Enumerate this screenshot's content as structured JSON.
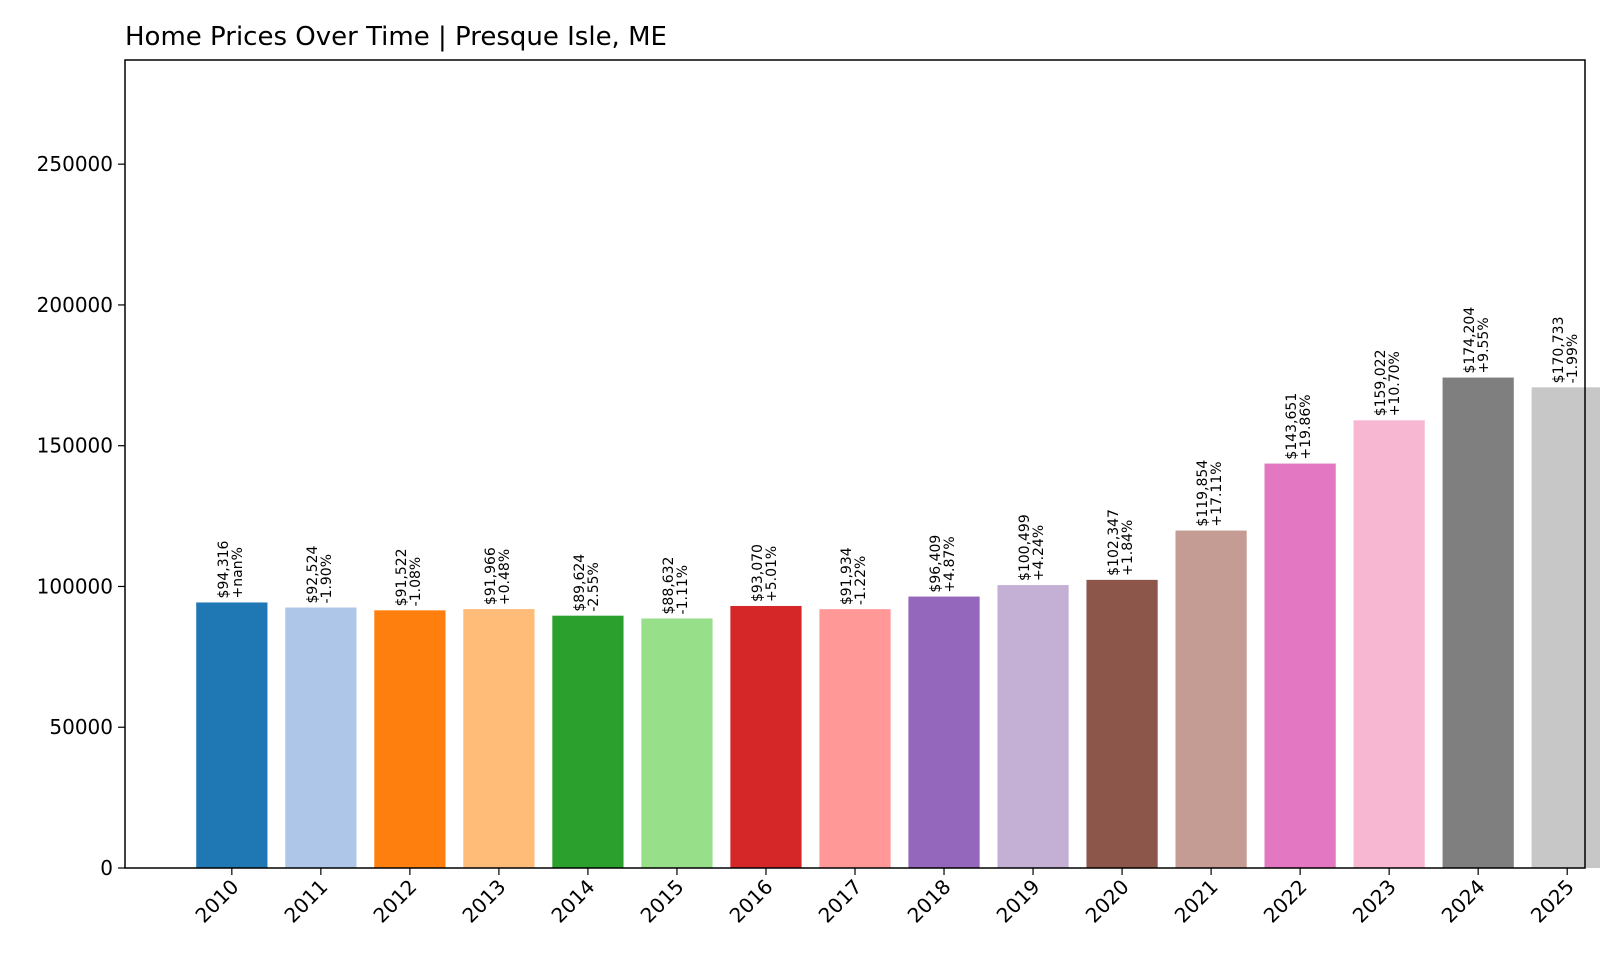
{
  "chart_data": {
    "type": "bar",
    "title": "Home Prices Over Time | Presque Isle, ME",
    "xlabel": "",
    "ylabel": "",
    "ylim": [
      0,
      287000
    ],
    "yticks": [
      0,
      50000,
      100000,
      150000,
      200000,
      250000
    ],
    "ytick_labels": [
      "0",
      "50000",
      "100000",
      "150000",
      "200000",
      "250000"
    ],
    "grid": false,
    "legend": "none",
    "categories": [
      "2010",
      "2011",
      "2012",
      "2013",
      "2014",
      "2015",
      "2016",
      "2017",
      "2018",
      "2019",
      "2020",
      "2021",
      "2022",
      "2023",
      "2024",
      "2025"
    ],
    "values": [
      94316,
      92524,
      91522,
      91966,
      89624,
      88632,
      93070,
      91934,
      96409,
      100499,
      102347,
      119854,
      143651,
      159022,
      174204,
      170733
    ],
    "price_labels": [
      "$94,316",
      "$92,524",
      "$91,522",
      "$91,966",
      "$89,624",
      "$88,632",
      "$93,070",
      "$91,934",
      "$96,409",
      "$100,499",
      "$102,347",
      "$119,854",
      "$143,651",
      "$159,022",
      "$174,204",
      "$170,733"
    ],
    "change_labels": [
      "+nan%",
      "-1.90%",
      "-1.08%",
      "+0.48%",
      "-2.55%",
      "-1.11%",
      "+5.01%",
      "-1.22%",
      "+4.87%",
      "+4.24%",
      "+1.84%",
      "+17.11%",
      "+19.86%",
      "+10.70%",
      "+9.55%",
      "-1.99%"
    ],
    "colors": [
      "#1f77b4",
      "#aec7e8",
      "#ff7f0e",
      "#ffbb78",
      "#2ca02c",
      "#98df8a",
      "#d62728",
      "#ff9896",
      "#9467bd",
      "#c5b0d5",
      "#8c564b",
      "#c49c94",
      "#e377c2",
      "#f7b6d2",
      "#7f7f7f",
      "#c7c7c7"
    ]
  }
}
